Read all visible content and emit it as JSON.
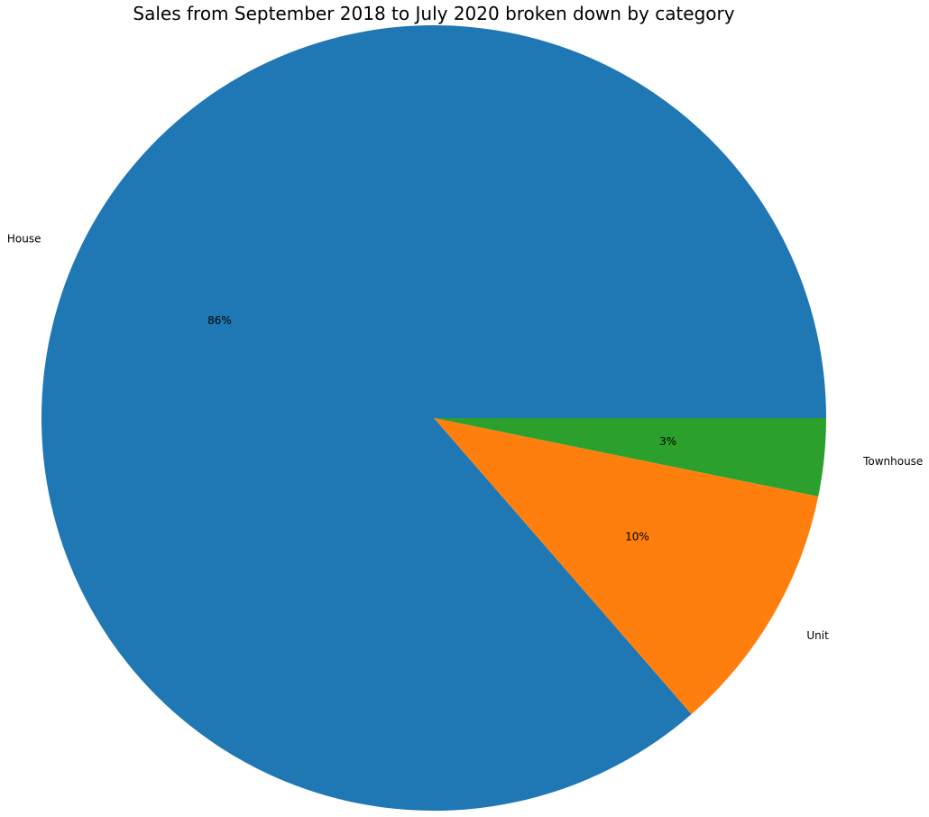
{
  "chart_data": {
    "type": "pie",
    "title": "Sales from September 2018 to July 2020 broken down by category",
    "categories": [
      "House",
      "Unit",
      "Townhouse"
    ],
    "values": [
      86.4,
      10.4,
      3.2
    ],
    "pct_labels": [
      "86%",
      "10%",
      "3%"
    ],
    "colors": [
      "#1f77b4",
      "#ff7f0e",
      "#2ca02c"
    ],
    "start_angle_deg": 0,
    "direction": "counterclockwise",
    "legend": "none"
  }
}
